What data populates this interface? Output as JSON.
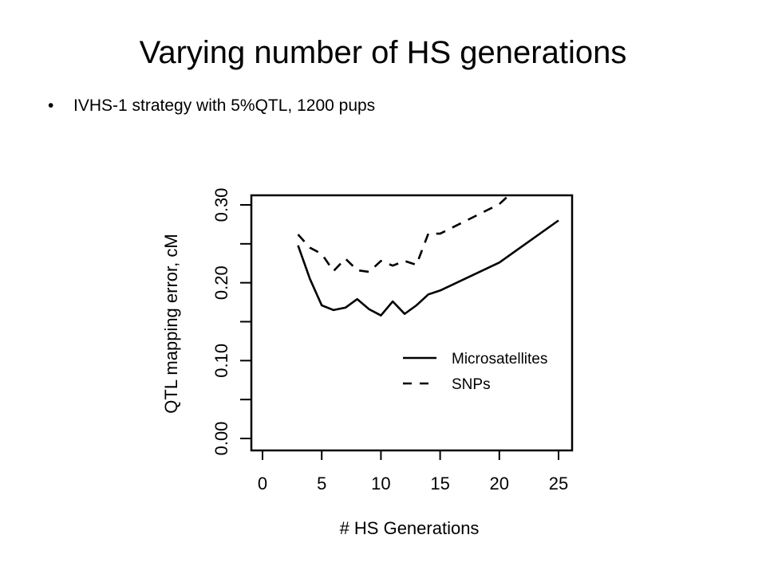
{
  "slide": {
    "title": "Varying number of HS generations",
    "bullet_char": "•",
    "bullet": "IVHS-1 strategy with 5%QTL, 1200 pups"
  },
  "chart_data": {
    "type": "line",
    "xlabel": "# HS Generations",
    "ylabel": "QTL mapping error, cM",
    "xlim": [
      0,
      25
    ],
    "ylim": [
      0,
      0.3
    ],
    "xticks": [
      "0",
      "5",
      "10",
      "15",
      "20",
      "25"
    ],
    "yticks": [
      "0.00",
      "0.10",
      "0.20",
      "0.30"
    ],
    "grid": false,
    "legend_position": "bottom-right",
    "series": [
      {
        "name": "Microsatellites",
        "dash": "solid",
        "x": [
          3,
          4,
          5,
          6,
          7,
          8,
          9,
          10,
          11,
          12,
          13,
          14,
          15,
          20,
          25
        ],
        "y": [
          0.248,
          0.205,
          0.171,
          0.165,
          0.168,
          0.179,
          0.166,
          0.158,
          0.176,
          0.16,
          0.171,
          0.185,
          0.19,
          0.226,
          0.28
        ]
      },
      {
        "name": "SNPs",
        "dash": "dashed",
        "x": [
          3,
          4,
          5,
          6,
          7,
          8,
          9,
          10,
          11,
          12,
          13,
          14,
          15,
          20,
          21
        ],
        "y": [
          0.262,
          0.245,
          0.237,
          0.215,
          0.231,
          0.216,
          0.214,
          0.228,
          0.222,
          0.228,
          0.223,
          0.263,
          0.263,
          0.301,
          0.315
        ]
      }
    ]
  }
}
